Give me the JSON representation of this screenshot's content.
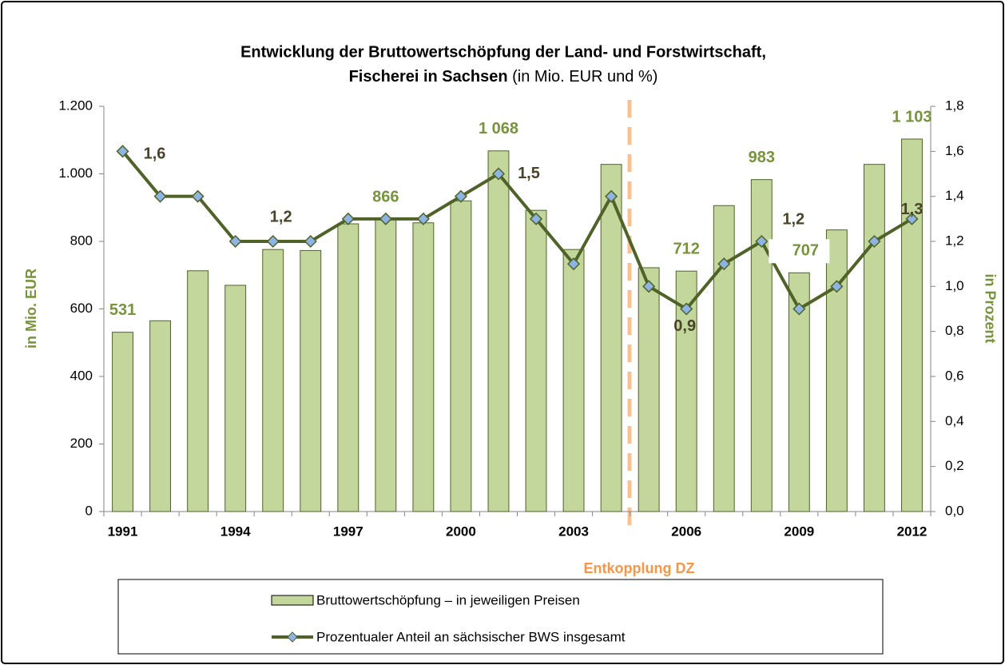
{
  "chart_data": {
    "type": "bar_line",
    "title": [
      "Entwicklung der Bruttowertschöpfung der Land- und Forstwirtschaft,",
      "Fischerei  in Sachsen",
      "(in Mio. EUR und %)"
    ],
    "y_label": "in Mio. EUR",
    "y2_label": "in Prozent",
    "annotation": "Entkopplung DZ",
    "categories": [
      "1991",
      null,
      null,
      "1994",
      null,
      null,
      "1997",
      null,
      null,
      "2000",
      null,
      null,
      "2003",
      null,
      null,
      "2006",
      null,
      null,
      "2009",
      null,
      null,
      "2012"
    ],
    "series": [
      {
        "name": "Bruttowertschöpfung – in jeweiligen Preisen",
        "color": "#c3d69b",
        "border": "#4f6228",
        "values": [
          531,
          565,
          713,
          670,
          776,
          773,
          852,
          866,
          855,
          920,
          1068,
          892,
          776,
          1028,
          722,
          712,
          906,
          983,
          707,
          834,
          1028,
          1103
        ],
        "value_labels": [
          "531",
          null,
          null,
          null,
          null,
          null,
          null,
          "866",
          null,
          null,
          "1 068",
          null,
          null,
          null,
          null,
          "712",
          null,
          "983",
          "707",
          null,
          null,
          "1 103"
        ]
      },
      {
        "name": "Prozentualer Anteil an sächsischer BWS insgesamt",
        "color": "#4f6228",
        "marker_color": "#8eb4e3",
        "axis": "y2",
        "values": [
          1.6,
          1.4,
          1.4,
          1.2,
          1.2,
          1.2,
          1.3,
          1.3,
          1.3,
          1.4,
          1.5,
          1.3,
          1.1,
          1.4,
          1.0,
          0.9,
          1.1,
          1.2,
          0.9,
          1.0,
          1.2,
          1.3
        ],
        "value_labels": [
          "1,6",
          null,
          null,
          null,
          "1,2",
          null,
          null,
          null,
          null,
          null,
          "1,5",
          null,
          null,
          null,
          null,
          "0,9",
          null,
          "1,2",
          null,
          null,
          null,
          "1,3"
        ]
      }
    ],
    "ylim": [
      0,
      1200
    ],
    "yticks": [
      0,
      200,
      400,
      600,
      800,
      {
        "value": 1000,
        "label": "1.000"
      },
      {
        "value": 1200,
        "label": "1.200"
      }
    ],
    "y2lim": [
      0,
      1.8
    ],
    "y2ticks": [
      {
        "value": 0,
        "label": "0,0"
      },
      {
        "value": 0.2,
        "label": "0,2"
      },
      {
        "value": 0.4,
        "label": "0,4"
      },
      {
        "value": 0.6,
        "label": "0,6"
      },
      {
        "value": 0.8,
        "label": "0,8"
      },
      {
        "value": 1.0,
        "label": "1,0"
      },
      {
        "value": 1.2,
        "label": "1,2"
      },
      {
        "value": 1.4,
        "label": "1,4"
      },
      {
        "value": 1.6,
        "label": "1,6"
      },
      {
        "value": 1.8,
        "label": "1,8"
      }
    ]
  }
}
